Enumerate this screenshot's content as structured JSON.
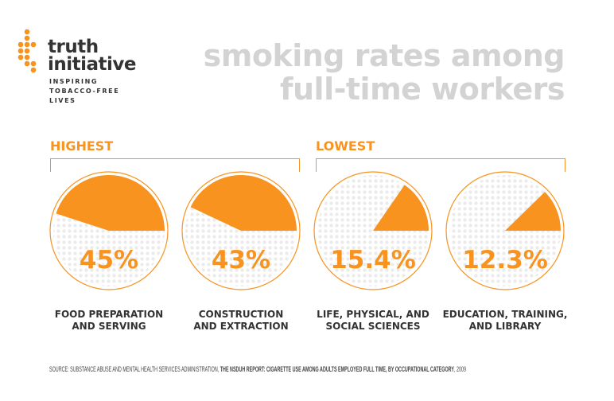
{
  "logo": {
    "line1": "truth",
    "line2": "initiative",
    "tagline": [
      "INSPIRING",
      "TOBACCO-FREE",
      "LIVES"
    ],
    "mark": "®"
  },
  "title": [
    "smoking rates among",
    "full-time workers"
  ],
  "groups": [
    {
      "label": "HIGHEST"
    },
    {
      "label": "LOWEST"
    }
  ],
  "colors": {
    "accent": "#f7931e",
    "title": "#d3d3d3",
    "dots": "#ebebeb"
  },
  "chart_data": {
    "type": "pie",
    "categories": [
      [
        "FOOD PREPARATION",
        "AND SERVING"
      ],
      [
        "CONSTRUCTION",
        "AND EXTRACTION"
      ],
      [
        "LIFE, PHYSICAL, AND",
        "SOCIAL SCIENCES"
      ],
      [
        "EDUCATION, TRAINING,",
        "AND LIBRARY"
      ]
    ],
    "values": [
      45,
      43,
      15.4,
      12.3
    ],
    "value_labels": [
      "45%",
      "43%",
      "15.4%",
      "12.3%"
    ],
    "unit": "%"
  },
  "source": {
    "prefix": "SOURCE: SUBSTANCE ABUSE AND MENTAL HEALTH SERVICES ADMINISTRATION, ",
    "bold": "THE NSDUH REPORT: CIGARETTE USE AMONG ADULTS EMPLOYED FULL TIME, BY OCCUPATIONAL CATEGORY",
    "suffix": ", 2009"
  }
}
